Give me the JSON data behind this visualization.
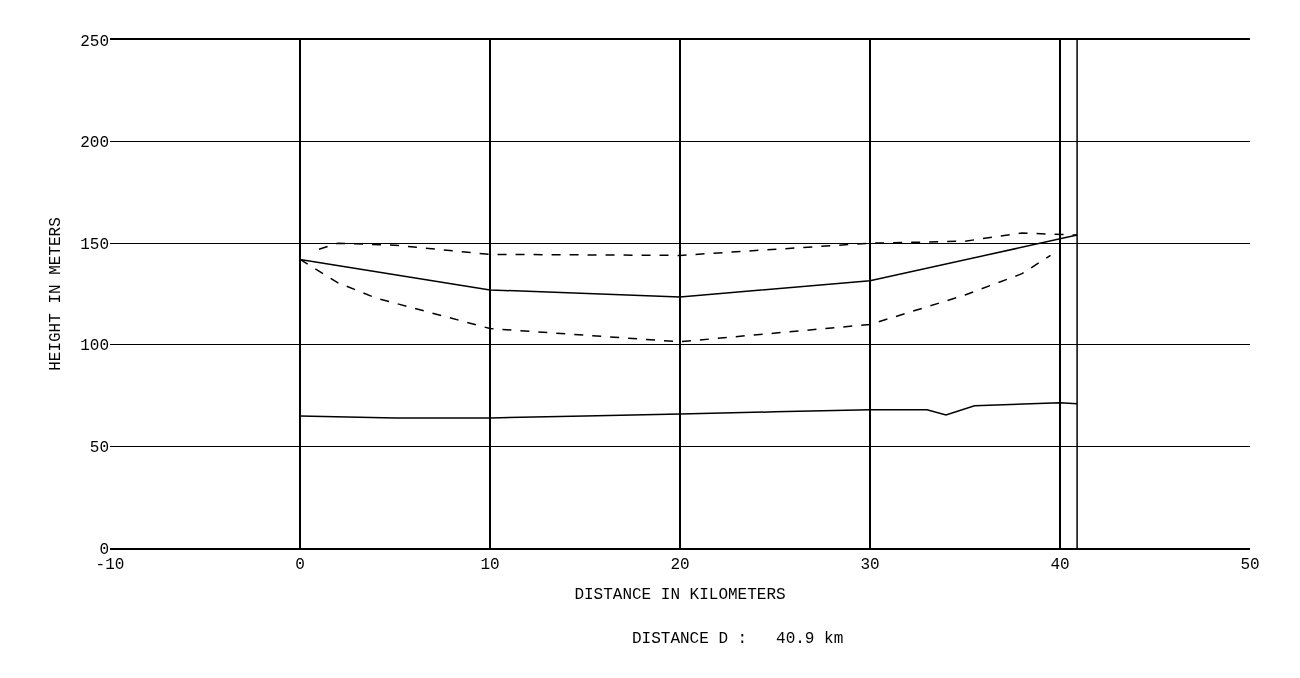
{
  "chart_data": {
    "type": "line",
    "xlabel": "DISTANCE IN KILOMETERS",
    "ylabel": "HEIGHT IN METERS",
    "annotations": [
      "DISTANCE D :   40.9 km"
    ],
    "xlim": [
      -10,
      50
    ],
    "xticks": [
      -10,
      0,
      10,
      20,
      30,
      40,
      50
    ],
    "ylim": [
      0,
      250
    ],
    "yticks": [
      0,
      50,
      100,
      150,
      200,
      250
    ],
    "grid": true,
    "marker": "none",
    "ref_lines": [
      {
        "axis": "x",
        "value": 40.9,
        "color": "#000000"
      }
    ],
    "series": [
      {
        "color": "#000000",
        "line_style": "solid",
        "x": [
          0,
          5,
          10,
          15,
          20,
          25,
          30,
          33,
          34,
          35.5,
          40,
          40.9
        ],
        "values": [
          65,
          64,
          64,
          65,
          66,
          67,
          68,
          68,
          65.5,
          70,
          71.5,
          71
        ]
      },
      {
        "color": "#000000",
        "line_style": "solid",
        "x": [
          0,
          10,
          20,
          30,
          40.9
        ],
        "values": [
          142,
          127,
          123.5,
          131.5,
          154
        ]
      },
      {
        "color": "#000000",
        "line_style": "dashed",
        "x": [
          1,
          2,
          5,
          10,
          20,
          30,
          35,
          38,
          40.9
        ],
        "values": [
          147,
          150,
          149,
          144.5,
          144,
          150,
          151,
          155,
          154
        ]
      },
      {
        "color": "#000000",
        "line_style": "dashed",
        "x": [
          0,
          2,
          4,
          10,
          20,
          30,
          35,
          38,
          39.5
        ],
        "values": [
          142,
          130.5,
          123,
          108,
          101.5,
          110,
          124.5,
          135,
          144
        ]
      }
    ]
  }
}
